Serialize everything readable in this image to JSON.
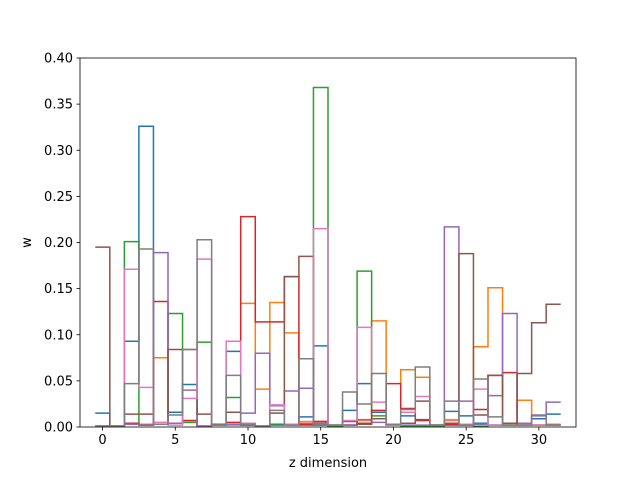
{
  "chart_data": {
    "type": "step",
    "title": "",
    "xlabel": "z dimension",
    "ylabel": "w",
    "xlim": [
      -1.55,
      32.55
    ],
    "ylim": [
      0,
      0.4
    ],
    "xticks": [
      0,
      5,
      10,
      15,
      20,
      25,
      30
    ],
    "yticks": [
      0.0,
      0.05,
      0.1,
      0.15,
      0.2,
      0.25,
      0.3,
      0.35,
      0.4
    ],
    "xtick_labels": [
      "0",
      "5",
      "10",
      "15",
      "20",
      "25",
      "30"
    ],
    "ytick_labels": [
      "0.00",
      "0.05",
      "0.10",
      "0.15",
      "0.20",
      "0.25",
      "0.30",
      "0.35",
      "0.40"
    ],
    "grid": false,
    "legend": "none",
    "x": [
      0,
      1,
      2,
      3,
      4,
      5,
      6,
      7,
      8,
      9,
      10,
      11,
      12,
      13,
      14,
      15,
      16,
      17,
      18,
      19,
      20,
      21,
      22,
      23,
      24,
      25,
      26,
      27,
      28,
      29,
      30,
      31
    ],
    "series": [
      {
        "color": "#1f77b4",
        "values": [
          0.015,
          0.001,
          0.093,
          0.326,
          0.003,
          0.016,
          0.046,
          0.001,
          0.002,
          0.082,
          0.002,
          0.001,
          0.003,
          0.003,
          0.011,
          0.088,
          0.001,
          0.018,
          0.047,
          0.016,
          0.002,
          0.012,
          0.008,
          0.002,
          0.017,
          0.012,
          0.004,
          0.002,
          0.002,
          0.002,
          0.009,
          0.014
        ]
      },
      {
        "color": "#ff7f0e",
        "values": [
          0.001,
          0.001,
          0.003,
          0.003,
          0.075,
          0.004,
          0.005,
          0.001,
          0.002,
          0.002,
          0.134,
          0.041,
          0.135,
          0.102,
          0.004,
          0.006,
          0.001,
          0.002,
          0.007,
          0.115,
          0.002,
          0.062,
          0.054,
          0.002,
          0.007,
          0.003,
          0.087,
          0.151,
          0.002,
          0.029,
          0.002,
          0.003
        ]
      },
      {
        "color": "#2ca02c",
        "values": [
          0.001,
          0.001,
          0.201,
          0.002,
          0.003,
          0.123,
          0.005,
          0.092,
          0.002,
          0.032,
          0.002,
          0.001,
          0.002,
          0.002,
          0.002,
          0.368,
          0.001,
          0.002,
          0.169,
          0.012,
          0.002,
          0.001,
          0.001,
          0.001,
          0.002,
          0.002,
          0.001,
          0.002,
          0.002,
          0.002,
          0.002,
          0.002
        ]
      },
      {
        "color": "#d62728",
        "values": [
          0.001,
          0.001,
          0.004,
          0.002,
          0.136,
          0.004,
          0.007,
          0.001,
          0.002,
          0.005,
          0.228,
          0.114,
          0.114,
          0.163,
          0.003,
          0.006,
          0.002,
          0.002,
          0.004,
          0.018,
          0.047,
          0.02,
          0.007,
          0.002,
          0.003,
          0.002,
          0.019,
          0.056,
          0.059,
          0.002,
          0.002,
          0.002
        ]
      },
      {
        "color": "#9467bd",
        "values": [
          0.001,
          0.001,
          0.003,
          0.002,
          0.189,
          0.004,
          0.04,
          0.001,
          0.003,
          0.003,
          0.015,
          0.08,
          0.023,
          0.039,
          0.042,
          0.004,
          0.002,
          0.002,
          0.008,
          0.005,
          0.003,
          0.002,
          0.002,
          0.002,
          0.217,
          0.028,
          0.003,
          0.034,
          0.123,
          0.004,
          0.012,
          0.027
        ]
      },
      {
        "color": "#8c564b",
        "values": [
          0.195,
          0.001,
          0.014,
          0.014,
          0.003,
          0.084,
          0.084,
          0.014,
          0.003,
          0.016,
          0.004,
          0.001,
          0.015,
          0.163,
          0.185,
          0.002,
          0.002,
          0.006,
          0.003,
          0.009,
          0.002,
          0.004,
          0.028,
          0.002,
          0.004,
          0.188,
          0.013,
          0.056,
          0.004,
          0.058,
          0.113,
          0.133
        ]
      },
      {
        "color": "#e377c2",
        "values": [
          0.001,
          0.001,
          0.171,
          0.043,
          0.005,
          0.002,
          0.031,
          0.182,
          0.002,
          0.093,
          0.004,
          0.001,
          0.024,
          0.003,
          0.006,
          0.215,
          0.002,
          0.007,
          0.108,
          0.027,
          0.002,
          0.016,
          0.033,
          0.002,
          0.008,
          0.003,
          0.041,
          0.002,
          0.002,
          0.002,
          0.002,
          0.002
        ]
      },
      {
        "color": "#7f7f7f",
        "values": [
          0.001,
          0.001,
          0.047,
          0.193,
          0.003,
          0.013,
          0.084,
          0.203,
          0.002,
          0.056,
          0.003,
          0.001,
          0.018,
          0.002,
          0.074,
          0.003,
          0.002,
          0.038,
          0.025,
          0.058,
          0.003,
          0.019,
          0.065,
          0.002,
          0.028,
          0.002,
          0.052,
          0.011,
          0.002,
          0.002,
          0.013,
          0.002
        ]
      }
    ]
  }
}
